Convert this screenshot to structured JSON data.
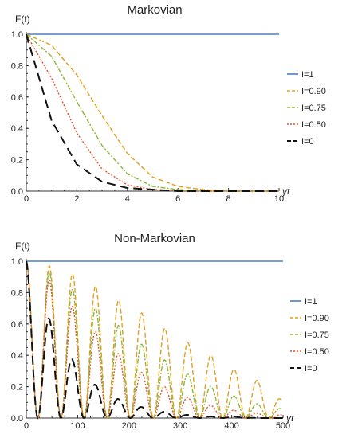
{
  "chart_data": [
    {
      "type": "line",
      "title": "Markovian",
      "xlabel": "γt",
      "ylabel": "F(t)",
      "xlim": [
        0,
        10
      ],
      "ylim": [
        0,
        1.0
      ],
      "xticks": [
        0,
        2,
        4,
        6,
        8,
        10
      ],
      "yticks": [
        0.0,
        0.2,
        0.4,
        0.6,
        0.8,
        1.0
      ],
      "xtick_labels": [
        "0",
        "2",
        "4",
        "6",
        "8",
        "10"
      ],
      "ytick_labels": [
        "0.0",
        "0.2",
        "0.4",
        "0.6",
        "0.8",
        "1.0"
      ],
      "legend_position": "right",
      "series": [
        {
          "name": "I=1",
          "color": "#4a7fc1",
          "dash": "solid",
          "x": [
            0,
            10
          ],
          "y": [
            1.0,
            1.0
          ]
        },
        {
          "name": "I=0.90",
          "color": "#e0a020",
          "dash": "dashed",
          "x": [
            0,
            1,
            2,
            3,
            4,
            5,
            6,
            7,
            8,
            10
          ],
          "y": [
            1.0,
            0.93,
            0.74,
            0.48,
            0.24,
            0.09,
            0.03,
            0.01,
            0.0,
            0.0
          ]
        },
        {
          "name": "I=0.75",
          "color": "#8db83a",
          "dash": "dashdot",
          "x": [
            0,
            1,
            2,
            3,
            4,
            5,
            6,
            7,
            8,
            10
          ],
          "y": [
            1.0,
            0.86,
            0.57,
            0.29,
            0.11,
            0.03,
            0.01,
            0.0,
            0.0,
            0.0
          ]
        },
        {
          "name": "I=0.50",
          "color": "#e8502a",
          "dash": "dotted",
          "x": [
            0,
            1,
            2,
            3,
            4,
            5,
            6,
            7,
            8,
            10
          ],
          "y": [
            1.0,
            0.72,
            0.37,
            0.14,
            0.04,
            0.01,
            0.0,
            0.0,
            0.0,
            0.0
          ]
        },
        {
          "name": "I=0",
          "color": "#111111",
          "dash": "longdash",
          "x": [
            0,
            1,
            2,
            3,
            4,
            5,
            6,
            8,
            10
          ],
          "y": [
            1.0,
            0.45,
            0.17,
            0.06,
            0.02,
            0.01,
            0.0,
            0.0,
            0.0
          ]
        }
      ]
    },
    {
      "type": "line",
      "title": "Non-Markovian",
      "xlabel": "γt",
      "ylabel": "F(t)",
      "xlim": [
        0,
        500
      ],
      "ylim": [
        0,
        1.0
      ],
      "xticks": [
        0,
        100,
        200,
        300,
        400,
        500
      ],
      "yticks": [
        0.0,
        0.2,
        0.4,
        0.6,
        0.8,
        1.0
      ],
      "xtick_labels": [
        "0",
        "100",
        "200",
        "300",
        "400",
        "500"
      ],
      "ytick_labels": [
        "0.0",
        "0.2",
        "0.4",
        "0.6",
        "0.8",
        "1.0"
      ],
      "legend_position": "right",
      "oscillation_period": 45,
      "zeros_at": [
        22,
        67,
        112,
        157,
        202,
        247,
        292,
        337,
        382,
        427,
        472
      ],
      "series": [
        {
          "name": "I=1",
          "color": "#4a7fc1",
          "dash": "solid",
          "x": [
            0,
            500
          ],
          "y": [
            1.0,
            1.0
          ]
        },
        {
          "name": "I=0.90",
          "color": "#e0a020",
          "dash": "dashed",
          "x": [
            45,
            90,
            135,
            180,
            225,
            270,
            315,
            360,
            405,
            450,
            495
          ],
          "y": [
            0.97,
            0.92,
            0.84,
            0.75,
            0.67,
            0.57,
            0.48,
            0.4,
            0.31,
            0.24,
            0.12
          ]
        },
        {
          "name": "I=0.75",
          "color": "#8db83a",
          "dash": "dashdot",
          "x": [
            45,
            90,
            135,
            180,
            225,
            270,
            315,
            360,
            405,
            450,
            495
          ],
          "y": [
            0.93,
            0.82,
            0.7,
            0.59,
            0.47,
            0.37,
            0.28,
            0.2,
            0.14,
            0.09,
            0.06
          ]
        },
        {
          "name": "I=0.50",
          "color": "#e8502a",
          "dash": "dotted",
          "x": [
            45,
            90,
            135,
            180,
            225,
            270,
            315,
            360,
            405,
            450,
            495
          ],
          "y": [
            0.88,
            0.71,
            0.55,
            0.41,
            0.29,
            0.2,
            0.13,
            0.08,
            0.05,
            0.03,
            0.02
          ]
        },
        {
          "name": "I=0",
          "color": "#111111",
          "dash": "longdash",
          "x": [
            45,
            90,
            135,
            180,
            225,
            270,
            315,
            360,
            405,
            450,
            495
          ],
          "y": [
            0.63,
            0.37,
            0.21,
            0.12,
            0.07,
            0.04,
            0.02,
            0.01,
            0.01,
            0.0,
            0.0
          ]
        }
      ]
    }
  ]
}
